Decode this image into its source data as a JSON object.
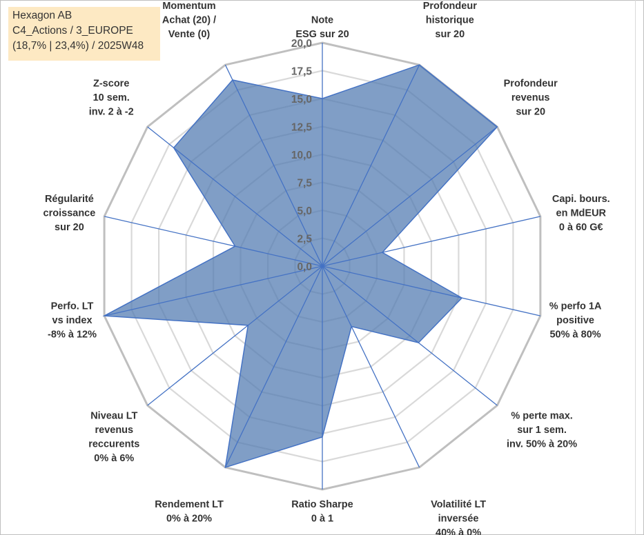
{
  "title_box": {
    "line1": "Hexagon AB",
    "line2": "C4_Actions / 3_EUROPE",
    "line3": "(18,7% | 23,4%) / 2025W48"
  },
  "chart_data": {
    "type": "radar",
    "title": "Hexagon AB",
    "r_min": 0,
    "r_max": 20,
    "r_step": 2.5,
    "tick_labels": [
      "0,0",
      "2,5",
      "5,0",
      "7,5",
      "10,0",
      "12,5",
      "15,0",
      "17,5",
      "20,0"
    ],
    "categories": [
      [
        "Note",
        "ESG sur 20"
      ],
      [
        "Profondeur",
        "historique",
        "sur 20"
      ],
      [
        "Profondeur",
        "revenus",
        "sur 20"
      ],
      [
        "Capi. bours.",
        "en MdEUR",
        "0 à 60 G€"
      ],
      [
        "% perfo 1A",
        "positive",
        "50% à 80%"
      ],
      [
        "% perte max.",
        "sur 1 sem.",
        "inv. 50% à 20%"
      ],
      [
        "Volatilité LT",
        "inversée",
        "40% à 0%"
      ],
      [
        "Ratio Sharpe",
        "0 à 1"
      ],
      [
        "Rendement LT",
        "0% à 20%"
      ],
      [
        "Niveau LT",
        "revenus",
        "reccurents",
        "0% à 6%"
      ],
      [
        "Perfo. LT",
        "vs index",
        "-8% à 12%"
      ],
      [
        "Régularité",
        "croissance",
        "sur 20"
      ],
      [
        "Z-score",
        "10 sem.",
        "inv. 2 à -2"
      ],
      [
        "Momentum",
        "Achat (20) /",
        "Vente (0)"
      ]
    ],
    "series": [
      {
        "name": "Hexagon AB",
        "color": "#4f79b0",
        "values": [
          15.0,
          20.0,
          20.0,
          5.5,
          12.8,
          11.0,
          6.0,
          15.3,
          20.0,
          8.5,
          20.0,
          8.0,
          17.0,
          18.5
        ]
      }
    ],
    "grid": true
  }
}
